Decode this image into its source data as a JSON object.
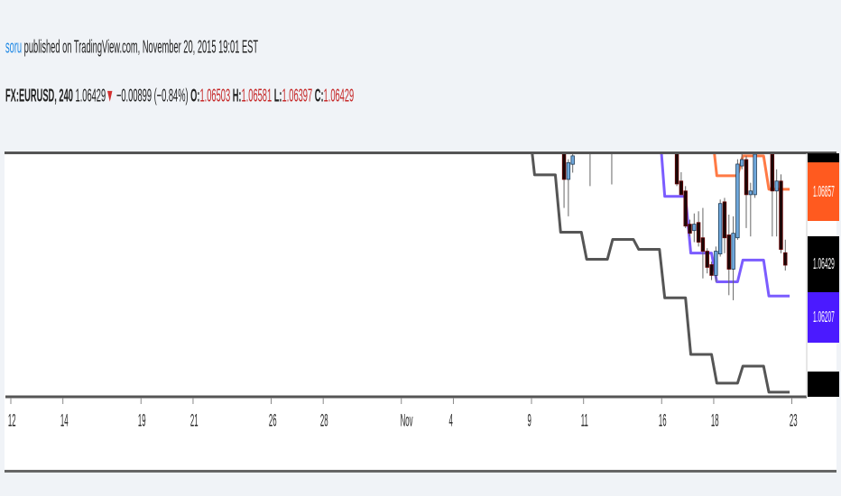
{
  "header": {
    "user": "soru",
    "published_text": " published on TradingView.com, November 20, 2015 19:01 EST",
    "symbol": "FX:EURUSD, 240",
    "last": "1.06429",
    "direction_icon": "triangle-down-icon",
    "change": "−0.00899 (−0.84%)",
    "o_label": "O:",
    "o": "1.06503",
    "h_label": "H:",
    "h": "1.06581",
    "l_label": "L:",
    "l": "1.06397",
    "c_label": "C:",
    "c": "1.06429"
  },
  "colors": {
    "user": "#1e88e5",
    "ohlc": "#c62828",
    "orange": "#ff5a1f",
    "purple": "#4b1aff",
    "black_line": "#555555",
    "bull": "#6fa8dc",
    "bear": "#1a0808"
  },
  "price_labels": [
    {
      "value": "1.06857",
      "color": "#ff5a1f"
    },
    {
      "value": "1.06429",
      "color": "#000000"
    },
    {
      "value": "1.06207",
      "color": "#4b1aff"
    }
  ],
  "chart_data": {
    "type": "candlestick",
    "interval_minutes": 240,
    "ylim": [
      1.0565,
      1.0709
    ],
    "x_ticks": [
      "12",
      "14",
      "19",
      "21",
      "26",
      "28",
      "Nov",
      "4",
      "9",
      "11",
      "16",
      "18",
      "23"
    ],
    "x_tick_dates": [
      "2015-10-12",
      "2015-10-14",
      "2015-10-19",
      "2015-10-21",
      "2015-10-26",
      "2015-10-28",
      "2015-11-02",
      "2015-11-04",
      "2015-11-09",
      "2015-11-11",
      "2015-11-16",
      "2015-11-18",
      "2015-11-23"
    ],
    "candles": [
      {
        "t": "2015-11-10 04:00",
        "o": 1.0712,
        "h": 1.0713,
        "l": 1.0677,
        "c": 1.0694
      },
      {
        "t": "2015-11-10 08:00",
        "o": 1.0694,
        "h": 1.0706,
        "l": 1.0672,
        "c": 1.0704
      },
      {
        "t": "2015-11-10 12:00",
        "o": 1.0703,
        "h": 1.071,
        "l": 1.0698,
        "c": 1.0708
      },
      {
        "t": "2015-11-11 04:00",
        "o": 1.0715,
        "h": 1.072,
        "l": 1.069,
        "c": 1.0712
      },
      {
        "t": "2015-11-12 00:00",
        "o": 1.0716,
        "h": 1.072,
        "l": 1.0691,
        "c": 1.0713
      },
      {
        "t": "2015-11-16 12:00",
        "o": 1.071,
        "h": 1.0712,
        "l": 1.069,
        "c": 1.06913
      },
      {
        "t": "2015-11-16 16:00",
        "o": 1.0693,
        "h": 1.06983,
        "l": 1.0686,
        "c": 1.06849
      },
      {
        "t": "2015-11-16 20:00",
        "o": 1.06871,
        "h": 1.069,
        "l": 1.0665,
        "c": 1.06662
      },
      {
        "t": "2015-11-17 00:00",
        "o": 1.06673,
        "h": 1.067,
        "l": 1.066,
        "c": 1.06619
      },
      {
        "t": "2015-11-17 04:00",
        "o": 1.06635,
        "h": 1.06737,
        "l": 1.06566,
        "c": 1.06673
      },
      {
        "t": "2015-11-17 08:00",
        "o": 1.06683,
        "h": 1.0675,
        "l": 1.0654,
        "c": 1.06566
      },
      {
        "t": "2015-11-17 12:00",
        "o": 1.06592,
        "h": 1.0677,
        "l": 1.0635,
        "c": 1.06512
      },
      {
        "t": "2015-11-17 16:00",
        "o": 1.06512,
        "h": 1.0653,
        "l": 1.0638,
        "c": 1.06416
      },
      {
        "t": "2015-11-17 20:00",
        "o": 1.06432,
        "h": 1.0645,
        "l": 1.0634,
        "c": 1.06368
      },
      {
        "t": "2015-11-18 00:00",
        "o": 1.06368,
        "h": 1.0654,
        "l": 1.0633,
        "c": 1.06512
      },
      {
        "t": "2015-11-18 04:00",
        "o": 1.06496,
        "h": 1.0682,
        "l": 1.0648,
        "c": 1.06796
      },
      {
        "t": "2015-11-18 08:00",
        "o": 1.06806,
        "h": 1.0683,
        "l": 1.065,
        "c": 1.06592
      },
      {
        "t": "2015-11-18 12:00",
        "o": 1.06609,
        "h": 1.0673,
        "l": 1.0625,
        "c": 1.06405
      },
      {
        "t": "2015-11-18 16:00",
        "o": 1.06405,
        "h": 1.0672,
        "l": 1.0622,
        "c": 1.06619
      },
      {
        "t": "2015-11-18 20:00",
        "o": 1.06592,
        "h": 1.0706,
        "l": 1.0658,
        "c": 1.07031
      },
      {
        "t": "2015-11-19 00:00",
        "o": 1.0702,
        "h": 1.0709,
        "l": 1.07,
        "c": 1.07058
      },
      {
        "t": "2015-11-19 04:00",
        "o": 1.07058,
        "h": 1.0708,
        "l": 1.0665,
        "c": 1.06849
      },
      {
        "t": "2015-11-19 08:00",
        "o": 1.06849,
        "h": 1.0692,
        "l": 1.066,
        "c": 1.06871
      },
      {
        "t": "2015-11-19 12:00",
        "o": 1.06849,
        "h": 1.0712,
        "l": 1.0683,
        "c": 1.0709
      },
      {
        "t": "2015-11-20 04:00",
        "o": 1.0709,
        "h": 1.0712,
        "l": 1.066,
        "c": 1.06871
      },
      {
        "t": "2015-11-20 08:00",
        "o": 1.06871,
        "h": 1.07,
        "l": 1.066,
        "c": 1.0693
      },
      {
        "t": "2015-11-20 12:00",
        "o": 1.0693,
        "h": 1.0697,
        "l": 1.065,
        "c": 1.06523
      },
      {
        "t": "2015-11-20 16:00",
        "o": 1.06503,
        "h": 1.06581,
        "l": 1.06397,
        "c": 1.06429
      }
    ],
    "step_lines": [
      {
        "color": "#555555",
        "points": [
          [
            "2015-11-06",
            1.0725
          ],
          [
            "2015-11-09",
            1.06967
          ],
          [
            "2015-11-10",
            1.06625
          ],
          [
            "2015-11-11",
            1.06464
          ],
          [
            "2015-11-12",
            1.06582
          ],
          [
            "2015-11-13",
            1.06523
          ],
          [
            "2015-11-16",
            1.06234
          ],
          [
            "2015-11-17",
            1.05897
          ],
          [
            "2015-11-18",
            1.05726
          ],
          [
            "2015-11-19",
            1.05827
          ],
          [
            "2015-11-20",
            1.05672
          ]
        ]
      },
      {
        "color": "#7b5cff",
        "points": [
          [
            "2015-11-13",
            1.0725
          ],
          [
            "2015-11-16",
            1.06839
          ],
          [
            "2015-11-17",
            1.06501
          ],
          [
            "2015-11-18",
            1.0633
          ],
          [
            "2015-11-19",
            1.06459
          ],
          [
            "2015-11-20",
            1.06245
          ]
        ]
      },
      {
        "color": "#ff7a45",
        "points": [
          [
            "2015-11-17",
            1.0725
          ],
          [
            "2015-11-18",
            1.06962
          ],
          [
            "2015-11-19",
            1.0708
          ],
          [
            "2015-11-20",
            1.06881
          ]
        ]
      }
    ]
  }
}
